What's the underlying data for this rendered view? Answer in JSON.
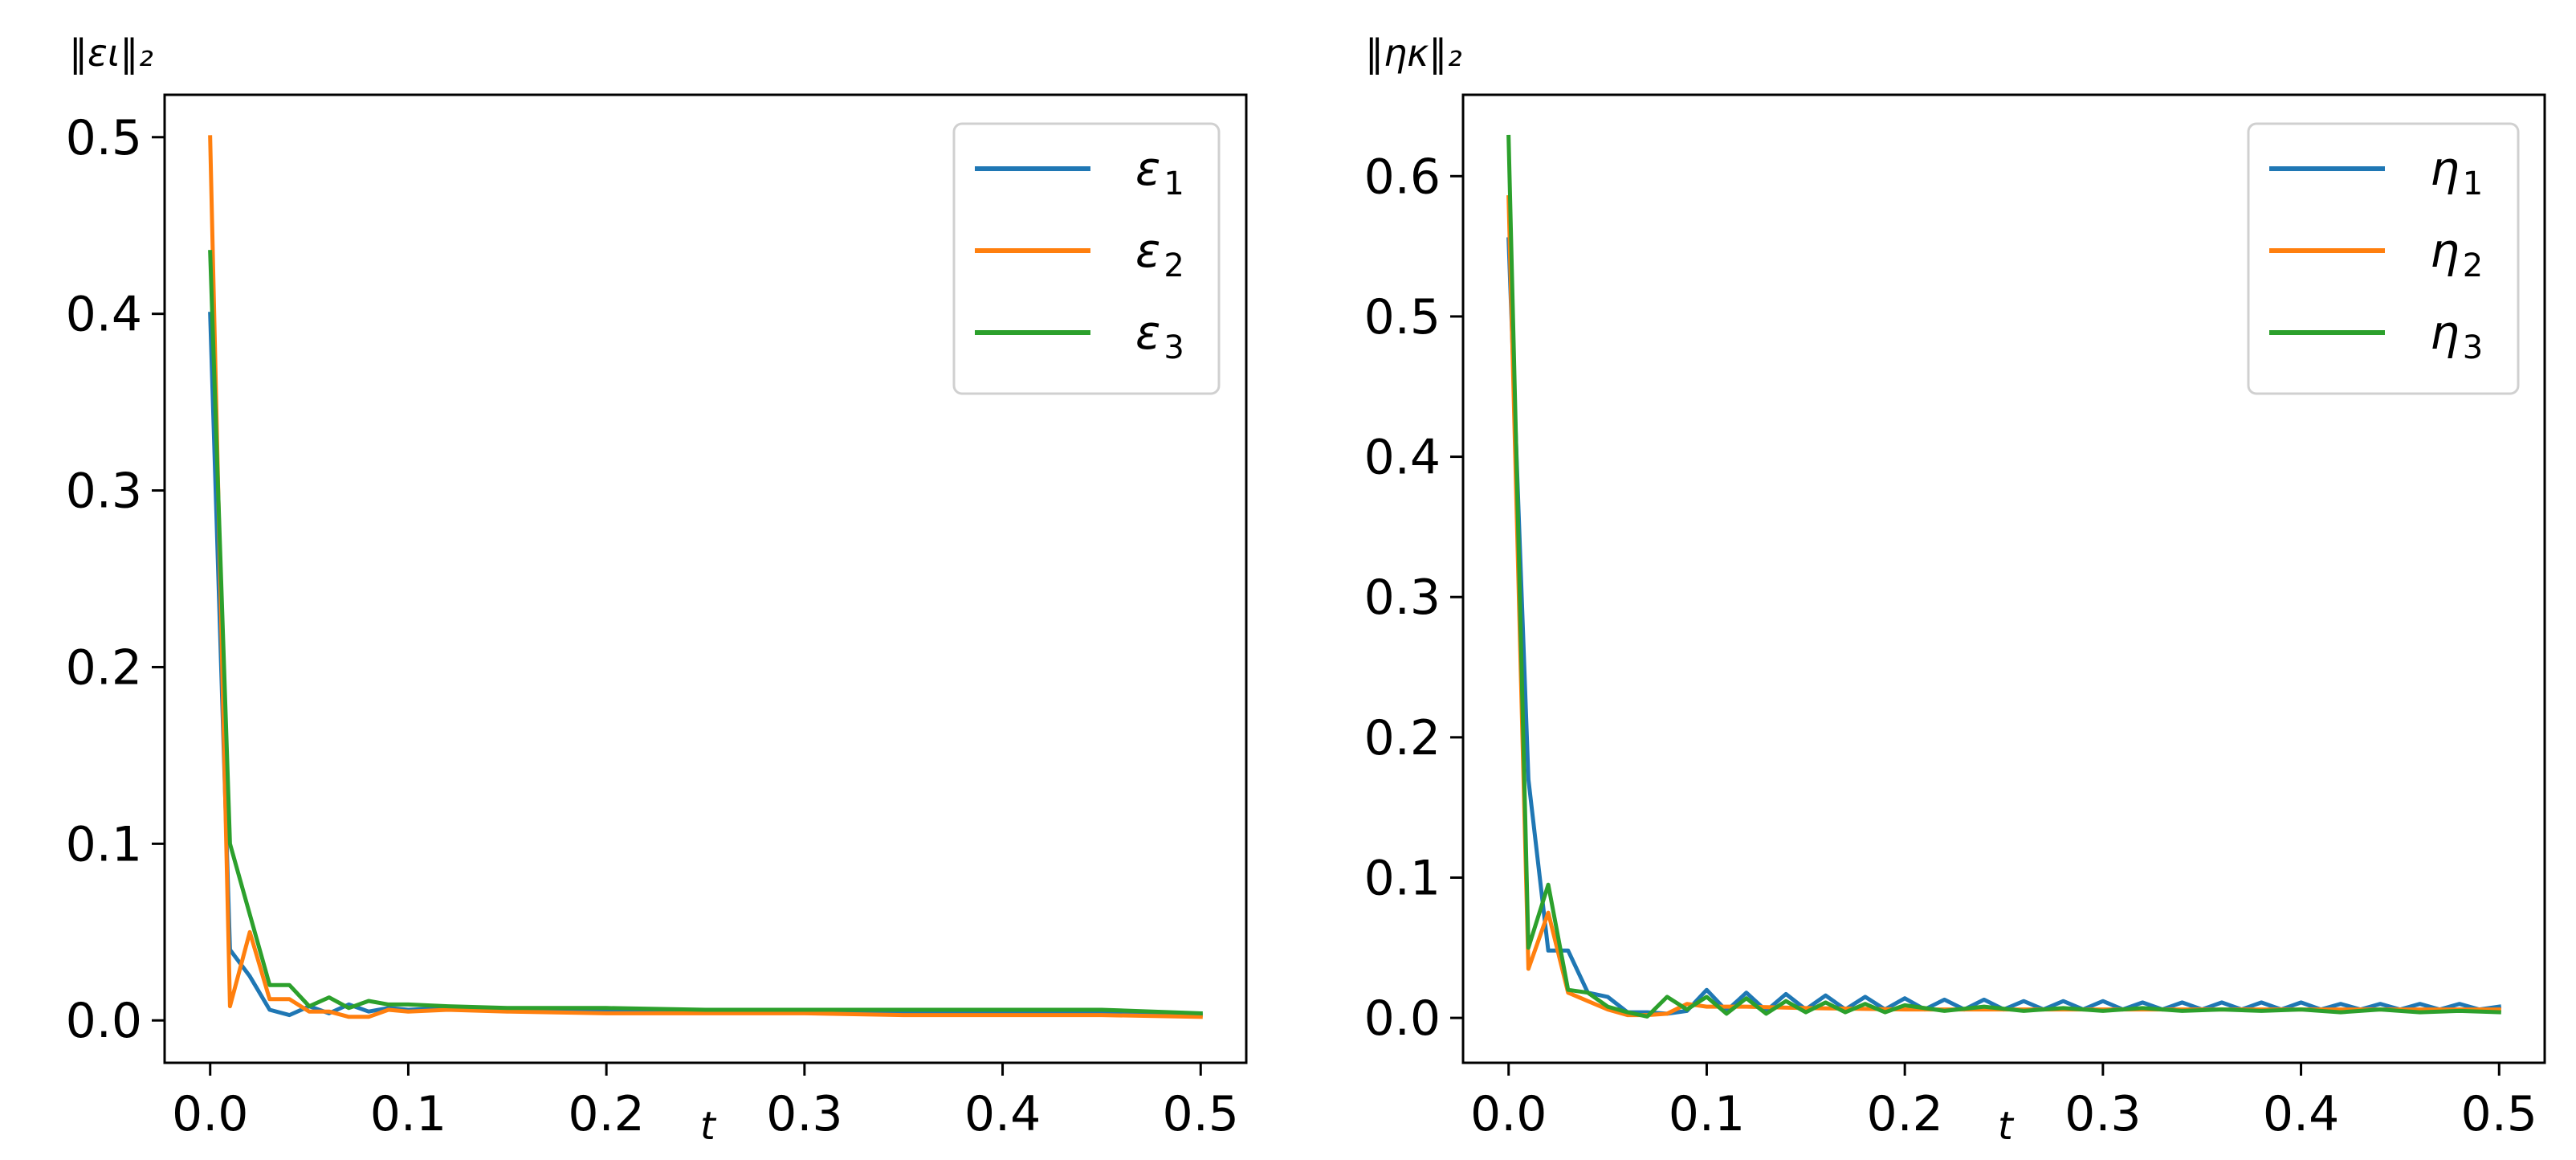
{
  "figure": {
    "background": "#ffffff"
  },
  "chart_data": [
    {
      "type": "line",
      "title": "",
      "ylabel": "‖ει‖₂",
      "xlabel": "t",
      "xlim": [
        -0.023,
        0.523
      ],
      "ylim": [
        -0.024,
        0.524
      ],
      "xticks": [
        0.0,
        0.1,
        0.2,
        0.3,
        0.4,
        0.5
      ],
      "xtick_labels": [
        "0.0",
        "0.1",
        "0.2",
        "0.3",
        "0.4",
        "0.5"
      ],
      "yticks": [
        0.0,
        0.1,
        0.2,
        0.3,
        0.4,
        0.5
      ],
      "ytick_labels": [
        "0.0",
        "0.1",
        "0.2",
        "0.3",
        "0.4",
        "0.5"
      ],
      "grid": false,
      "legend_position": "top-right",
      "series": [
        {
          "name": "ε",
          "subscript": "1",
          "color": "#1f77b4",
          "x": [
            0.0,
            0.01,
            0.02,
            0.03,
            0.04,
            0.05,
            0.06,
            0.07,
            0.08,
            0.09,
            0.1,
            0.12,
            0.15,
            0.2,
            0.25,
            0.3,
            0.35,
            0.4,
            0.45,
            0.5
          ],
          "y": [
            0.4,
            0.04,
            0.025,
            0.006,
            0.003,
            0.008,
            0.004,
            0.009,
            0.005,
            0.007,
            0.006,
            0.007,
            0.006,
            0.005,
            0.005,
            0.005,
            0.005,
            0.005,
            0.004,
            0.003
          ]
        },
        {
          "name": "ε",
          "subscript": "2",
          "color": "#ff7f0e",
          "x": [
            0.0,
            0.01,
            0.02,
            0.03,
            0.04,
            0.05,
            0.06,
            0.07,
            0.08,
            0.09,
            0.1,
            0.12,
            0.15,
            0.2,
            0.25,
            0.3,
            0.35,
            0.4,
            0.45,
            0.5
          ],
          "y": [
            0.5,
            0.008,
            0.05,
            0.012,
            0.012,
            0.005,
            0.005,
            0.002,
            0.002,
            0.006,
            0.005,
            0.006,
            0.005,
            0.004,
            0.004,
            0.004,
            0.003,
            0.003,
            0.003,
            0.002
          ]
        },
        {
          "name": "ε",
          "subscript": "3",
          "color": "#2ca02c",
          "x": [
            0.0,
            0.01,
            0.02,
            0.03,
            0.04,
            0.05,
            0.06,
            0.07,
            0.08,
            0.09,
            0.1,
            0.12,
            0.15,
            0.2,
            0.25,
            0.3,
            0.35,
            0.4,
            0.45,
            0.5
          ],
          "y": [
            0.435,
            0.1,
            0.06,
            0.02,
            0.02,
            0.008,
            0.013,
            0.007,
            0.011,
            0.009,
            0.009,
            0.008,
            0.007,
            0.007,
            0.006,
            0.006,
            0.006,
            0.006,
            0.006,
            0.004
          ]
        }
      ]
    },
    {
      "type": "line",
      "title": "",
      "ylabel": "‖ηκ‖₂",
      "xlabel": "t",
      "xlim": [
        -0.023,
        0.523
      ],
      "ylim": [
        -0.032,
        0.658
      ],
      "xticks": [
        0.0,
        0.1,
        0.2,
        0.3,
        0.4,
        0.5
      ],
      "xtick_labels": [
        "0.0",
        "0.1",
        "0.2",
        "0.3",
        "0.4",
        "0.5"
      ],
      "yticks": [
        0.0,
        0.1,
        0.2,
        0.3,
        0.4,
        0.5,
        0.6
      ],
      "ytick_labels": [
        "0.0",
        "0.1",
        "0.2",
        "0.3",
        "0.4",
        "0.5",
        "0.6"
      ],
      "grid": false,
      "legend_position": "top-right",
      "series": [
        {
          "name": "η",
          "subscript": "1",
          "color": "#1f77b4",
          "x": [
            0.0,
            0.01,
            0.02,
            0.03,
            0.04,
            0.05,
            0.06,
            0.07,
            0.08,
            0.09,
            0.1,
            0.11,
            0.12,
            0.13,
            0.14,
            0.15,
            0.16,
            0.17,
            0.18,
            0.19,
            0.2,
            0.21,
            0.22,
            0.23,
            0.24,
            0.25,
            0.26,
            0.27,
            0.28,
            0.29,
            0.3,
            0.31,
            0.32,
            0.33,
            0.34,
            0.35,
            0.36,
            0.37,
            0.38,
            0.39,
            0.4,
            0.41,
            0.42,
            0.43,
            0.44,
            0.45,
            0.46,
            0.47,
            0.48,
            0.49,
            0.5
          ],
          "y": [
            0.555,
            0.17,
            0.048,
            0.048,
            0.018,
            0.015,
            0.004,
            0.004,
            0.003,
            0.005,
            0.02,
            0.005,
            0.018,
            0.005,
            0.017,
            0.006,
            0.016,
            0.006,
            0.015,
            0.006,
            0.014,
            0.006,
            0.013,
            0.006,
            0.013,
            0.006,
            0.012,
            0.006,
            0.012,
            0.006,
            0.012,
            0.006,
            0.011,
            0.006,
            0.011,
            0.006,
            0.011,
            0.006,
            0.011,
            0.006,
            0.011,
            0.006,
            0.01,
            0.006,
            0.01,
            0.006,
            0.01,
            0.006,
            0.01,
            0.006,
            0.008
          ]
        },
        {
          "name": "η",
          "subscript": "2",
          "color": "#ff7f0e",
          "x": [
            0.0,
            0.01,
            0.02,
            0.03,
            0.04,
            0.05,
            0.06,
            0.07,
            0.08,
            0.09,
            0.1,
            0.12,
            0.15,
            0.2,
            0.25,
            0.3,
            0.35,
            0.4,
            0.45,
            0.5
          ],
          "y": [
            0.585,
            0.035,
            0.075,
            0.018,
            0.012,
            0.006,
            0.002,
            0.002,
            0.003,
            0.01,
            0.008,
            0.008,
            0.007,
            0.006,
            0.006,
            0.006,
            0.006,
            0.006,
            0.006,
            0.006
          ]
        },
        {
          "name": "η",
          "subscript": "3",
          "color": "#2ca02c",
          "x": [
            0.0,
            0.01,
            0.02,
            0.03,
            0.04,
            0.05,
            0.06,
            0.07,
            0.08,
            0.09,
            0.1,
            0.11,
            0.12,
            0.13,
            0.14,
            0.15,
            0.16,
            0.17,
            0.18,
            0.19,
            0.2,
            0.22,
            0.24,
            0.26,
            0.28,
            0.3,
            0.32,
            0.34,
            0.36,
            0.38,
            0.4,
            0.42,
            0.44,
            0.46,
            0.48,
            0.5
          ],
          "y": [
            0.628,
            0.05,
            0.095,
            0.02,
            0.018,
            0.008,
            0.004,
            0.001,
            0.015,
            0.006,
            0.015,
            0.003,
            0.014,
            0.003,
            0.012,
            0.004,
            0.011,
            0.004,
            0.01,
            0.004,
            0.009,
            0.005,
            0.008,
            0.005,
            0.007,
            0.005,
            0.007,
            0.005,
            0.006,
            0.005,
            0.006,
            0.004,
            0.006,
            0.004,
            0.005,
            0.004
          ]
        }
      ]
    }
  ]
}
